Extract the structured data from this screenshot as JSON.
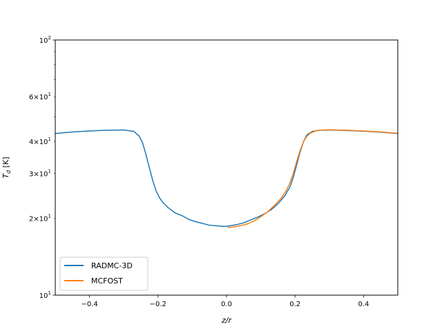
{
  "chart_data": {
    "type": "line",
    "title": "",
    "xlabel": "z/r",
    "ylabel": "T_d [K]",
    "xlim": [
      -0.5,
      0.5
    ],
    "ylim": [
      10,
      100
    ],
    "yscale": "log",
    "grid": false,
    "legend_position": "lower-left",
    "x_ticks": [
      -0.4,
      -0.2,
      0.0,
      0.2,
      0.4
    ],
    "x_tick_labels": [
      "−0.4",
      "−0.2",
      "0.0",
      "0.2",
      "0.4"
    ],
    "y_major_ticks": [
      10,
      100
    ],
    "y_major_tick_labels": [
      "10",
      "10"
    ],
    "y_major_tick_exponents": [
      "1",
      "2"
    ],
    "y_minor_ticks": [
      20,
      30,
      40,
      50,
      60,
      70,
      80,
      90
    ],
    "y_minor_labeled": [
      {
        "value": 20,
        "mantissa": "2",
        "base": "10",
        "exponent": "1"
      },
      {
        "value": 30,
        "mantissa": "3",
        "base": "10",
        "exponent": "1"
      },
      {
        "value": 40,
        "mantissa": "4",
        "base": "10",
        "exponent": "1"
      },
      {
        "value": 60,
        "mantissa": "6",
        "base": "10",
        "exponent": "1"
      }
    ],
    "series": [
      {
        "name": "RADMC-3D",
        "color": "#1f77b4",
        "x": [
          -0.5,
          -0.45,
          -0.4,
          -0.35,
          -0.3,
          -0.27,
          -0.255,
          -0.245,
          -0.235,
          -0.225,
          -0.215,
          -0.205,
          -0.195,
          -0.185,
          -0.17,
          -0.15,
          -0.13,
          -0.11,
          -0.09,
          -0.07,
          -0.05,
          -0.03,
          -0.01,
          0.0,
          0.01,
          0.03,
          0.05,
          0.07,
          0.09,
          0.11,
          0.13,
          0.15,
          0.17,
          0.185,
          0.195,
          0.205,
          0.215,
          0.225,
          0.235,
          0.25,
          0.27,
          0.3,
          0.35,
          0.4,
          0.45,
          0.5
        ],
        "y": [
          43.0,
          43.6,
          44.0,
          44.3,
          44.4,
          43.8,
          42.0,
          39.5,
          35.5,
          31.5,
          28.0,
          25.5,
          24.0,
          23.0,
          22.0,
          21.0,
          20.5,
          19.8,
          19.4,
          19.1,
          18.8,
          18.7,
          18.6,
          18.6,
          18.7,
          18.9,
          19.2,
          19.7,
          20.2,
          20.8,
          21.6,
          22.8,
          24.5,
          26.5,
          29.0,
          32.5,
          36.5,
          40.0,
          42.5,
          43.8,
          44.3,
          44.4,
          44.2,
          43.9,
          43.5,
          43.0
        ]
      },
      {
        "name": "MCFOST",
        "color": "#ff7f0e",
        "x": [
          0.005,
          0.02,
          0.04,
          0.06,
          0.08,
          0.1,
          0.12,
          0.14,
          0.16,
          0.175,
          0.185,
          0.195,
          0.205,
          0.215,
          0.225,
          0.235,
          0.245,
          0.26,
          0.28,
          0.3,
          0.35,
          0.4,
          0.45,
          0.5
        ],
        "y": [
          18.4,
          18.5,
          18.7,
          19.0,
          19.5,
          20.3,
          21.2,
          22.5,
          24.0,
          25.8,
          27.5,
          30.0,
          33.5,
          37.0,
          40.0,
          42.0,
          43.2,
          44.0,
          44.4,
          44.5,
          44.3,
          44.0,
          43.6,
          43.1
        ]
      }
    ]
  }
}
